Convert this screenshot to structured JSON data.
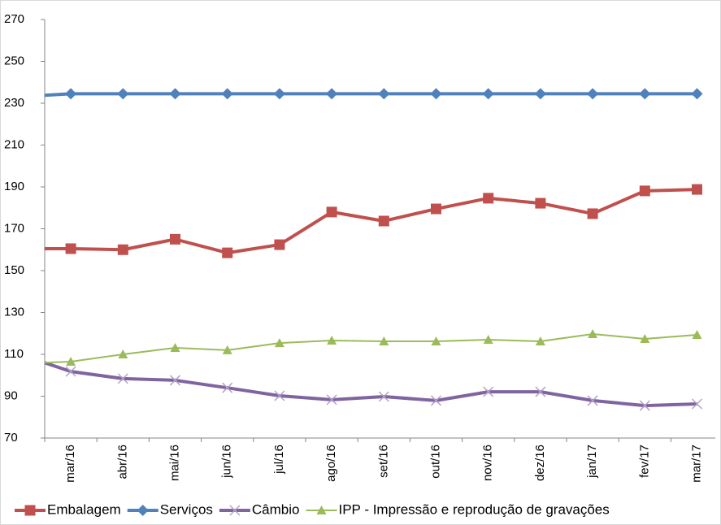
{
  "chart_data": {
    "type": "line",
    "categories": [
      null,
      "mar/16",
      "abr/16",
      "mai/16",
      "jun/16",
      "jul/16",
      "ago/16",
      "set/16",
      "out/16",
      "nov/16",
      "dez/16",
      "jan/17",
      "fev/17",
      "mar/17"
    ],
    "series": [
      {
        "name": "Embalagem",
        "color": "#c0504d",
        "marker": "square",
        "values": [
          160.5,
          160.5,
          160,
          165,
          158.5,
          162.4,
          178,
          173.7,
          179.5,
          184.6,
          182.2,
          177.2,
          188.1,
          188.8
        ]
      },
      {
        "name": "Serviços",
        "color": "#4f81bd",
        "marker": "diamond",
        "values": [
          233.8,
          234.5,
          234.5,
          234.5,
          234.5,
          234.5,
          234.5,
          234.5,
          234.5,
          234.5,
          234.5,
          234.5,
          234.5,
          234.5
        ]
      },
      {
        "name": "Câmbio",
        "color": "#8064a2",
        "marker": "x",
        "values": [
          106,
          101.8,
          98.4,
          97.6,
          94,
          90.2,
          88.3,
          89.8,
          87.9,
          92.1,
          92.1,
          87.9,
          85.5,
          86.3
        ]
      },
      {
        "name": "IPP - Impressão e reprodução de gravações",
        "color": "#9bbb59",
        "marker": "triangle",
        "values": [
          106,
          106.5,
          110,
          113.1,
          112,
          115.4,
          116.6,
          116.2,
          116.2,
          117,
          116.2,
          119.7,
          117.4,
          119.3
        ]
      }
    ],
    "ylim": [
      70,
      270
    ],
    "yticks": [
      70,
      90,
      110,
      130,
      150,
      170,
      190,
      210,
      230,
      250,
      270
    ],
    "grid": false,
    "legend": "bottom"
  }
}
